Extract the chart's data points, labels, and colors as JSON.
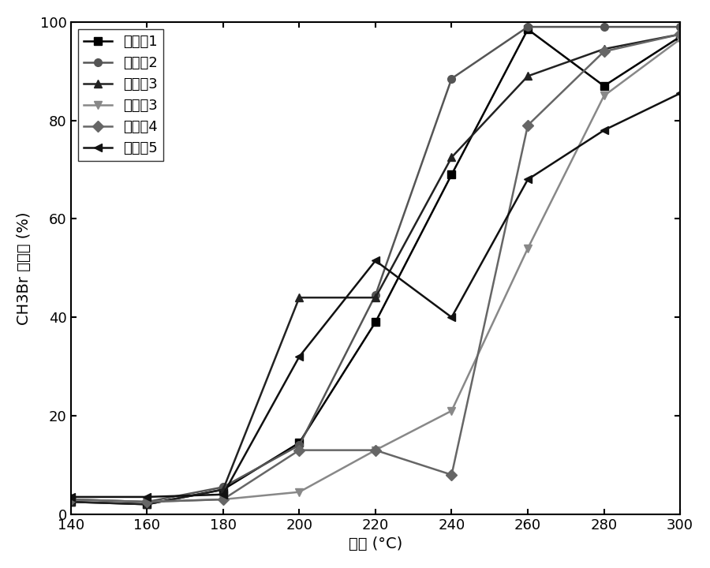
{
  "title": "",
  "xlabel": "温度 (°C)",
  "ylabel_lines": [
    "C",
    "H",
    "3",
    "B",
    "r",
    " ",
    "转",
    "化",
    "率",
    " ",
    "(%)"
  ],
  "ylabel_text": "CH3Br 转化率 (%)",
  "xlim": [
    140,
    300
  ],
  "ylim": [
    0,
    100
  ],
  "xticks": [
    140,
    160,
    180,
    200,
    220,
    240,
    260,
    280,
    300
  ],
  "yticks": [
    0,
    20,
    40,
    60,
    80,
    100
  ],
  "x": [
    140,
    160,
    180,
    200,
    220,
    240,
    260,
    280,
    300
  ],
  "series": [
    {
      "label": "实施例1",
      "color": "#000000",
      "marker": "s",
      "markersize": 7,
      "linewidth": 1.8,
      "values": [
        2.5,
        2.0,
        5.0,
        14.5,
        39.0,
        69.0,
        98.5,
        87.0,
        97.0
      ]
    },
    {
      "label": "实施例2",
      "color": "#555555",
      "marker": "o",
      "markersize": 7,
      "linewidth": 1.8,
      "values": [
        3.0,
        2.5,
        5.5,
        14.0,
        44.5,
        88.5,
        99.0,
        99.0,
        99.0
      ]
    },
    {
      "label": "实施例3",
      "color": "#222222",
      "marker": "^",
      "markersize": 7,
      "linewidth": 1.8,
      "values": [
        2.5,
        2.0,
        5.0,
        44.0,
        44.0,
        72.5,
        89.0,
        94.5,
        97.5
      ]
    },
    {
      "label": "对比例3",
      "color": "#888888",
      "marker": "v",
      "markersize": 7,
      "linewidth": 1.8,
      "values": [
        3.0,
        2.5,
        3.0,
        4.5,
        13.0,
        21.0,
        54.0,
        85.0,
        96.5
      ]
    },
    {
      "label": "对比例4",
      "color": "#666666",
      "marker": "D",
      "markersize": 7,
      "linewidth": 1.8,
      "values": [
        3.0,
        2.5,
        3.0,
        13.0,
        13.0,
        8.0,
        79.0,
        94.0,
        97.5
      ]
    },
    {
      "label": "对比例5",
      "color": "#111111",
      "marker": "<",
      "markersize": 7,
      "linewidth": 1.8,
      "values": [
        3.5,
        3.5,
        4.0,
        32.0,
        51.5,
        40.0,
        68.0,
        78.0,
        85.5
      ]
    }
  ],
  "legend_loc": "upper left",
  "font_size": 14,
  "tick_font_size": 13,
  "background_color": "#ffffff"
}
